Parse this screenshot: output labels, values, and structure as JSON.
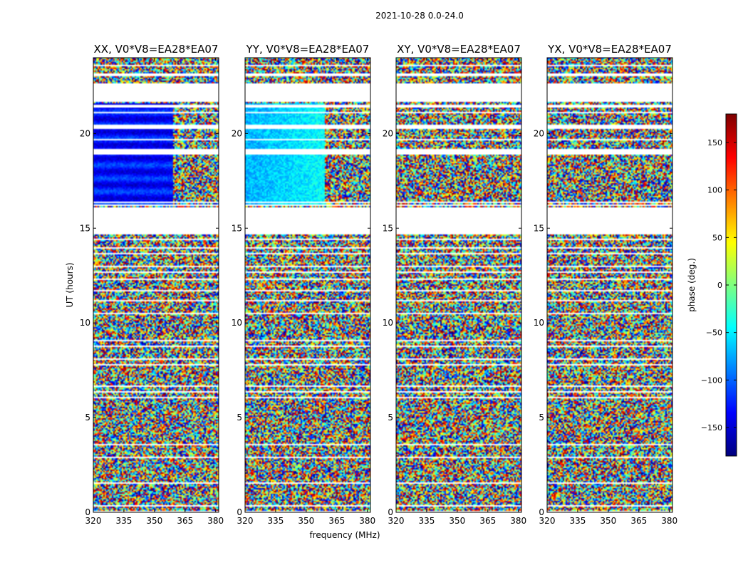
{
  "chart_data": {
    "type": "heatmap",
    "title": "2021-10-28 0.0-24.0",
    "xlabel": "frequency (MHz)",
    "ylabel": "UT (hours)",
    "colorbar_label": "phase (deg.)",
    "colormap": "jet",
    "clim": [
      -180,
      180
    ],
    "colorbar_ticks": [
      -150,
      -100,
      -50,
      0,
      50,
      100,
      150
    ],
    "xlim": [
      320,
      381.5
    ],
    "ylim": [
      0,
      24
    ],
    "x_ticks": [
      320,
      335,
      350,
      365,
      380
    ],
    "y_ticks": [
      0,
      5,
      10,
      15,
      20
    ],
    "panels": [
      {
        "title": "XX, V0*V8=EA28*EA07"
      },
      {
        "title": "YY, V0*V8=EA28*EA07"
      },
      {
        "title": "XY, V0*V8=EA28*EA07"
      },
      {
        "title": "YX, V0*V8=EA28*EA07"
      }
    ],
    "flagged_hours": [
      [
        0.0,
        0.1
      ],
      [
        0.3,
        0.35
      ],
      [
        1.5,
        1.6
      ],
      [
        2.85,
        2.9
      ],
      [
        3.35,
        3.4
      ],
      [
        3.55,
        3.6
      ],
      [
        4.95,
        5.0
      ],
      [
        5.55,
        5.6
      ],
      [
        5.85,
        5.9
      ],
      [
        6.05,
        6.1
      ],
      [
        6.35,
        6.4
      ],
      [
        6.65,
        6.7
      ],
      [
        7.5,
        7.55
      ],
      [
        7.75,
        7.8
      ],
      [
        8.05,
        8.1
      ],
      [
        8.4,
        8.45
      ],
      [
        8.75,
        8.8
      ],
      [
        9.05,
        9.1
      ],
      [
        9.75,
        9.8
      ],
      [
        10.2,
        10.25
      ],
      [
        10.45,
        10.5
      ],
      [
        11.15,
        11.2
      ],
      [
        11.4,
        11.45
      ],
      [
        11.65,
        11.7
      ],
      [
        11.95,
        12.0
      ],
      [
        12.3,
        12.35
      ],
      [
        12.65,
        12.7
      ],
      [
        12.95,
        13.0
      ],
      [
        13.3,
        13.35
      ],
      [
        13.65,
        13.7
      ],
      [
        13.95,
        14.0
      ],
      [
        14.35,
        14.45
      ],
      [
        14.65,
        16.1
      ],
      [
        16.2,
        16.25
      ],
      [
        16.35,
        16.4
      ],
      [
        18.1,
        18.15
      ],
      [
        18.85,
        19.2
      ],
      [
        19.65,
        19.7
      ],
      [
        20.25,
        20.45
      ],
      [
        21.05,
        21.15
      ],
      [
        21.4,
        21.55
      ],
      [
        21.65,
        22.65
      ],
      [
        23.05,
        23.15
      ],
      [
        23.55,
        23.65
      ]
    ]
  }
}
